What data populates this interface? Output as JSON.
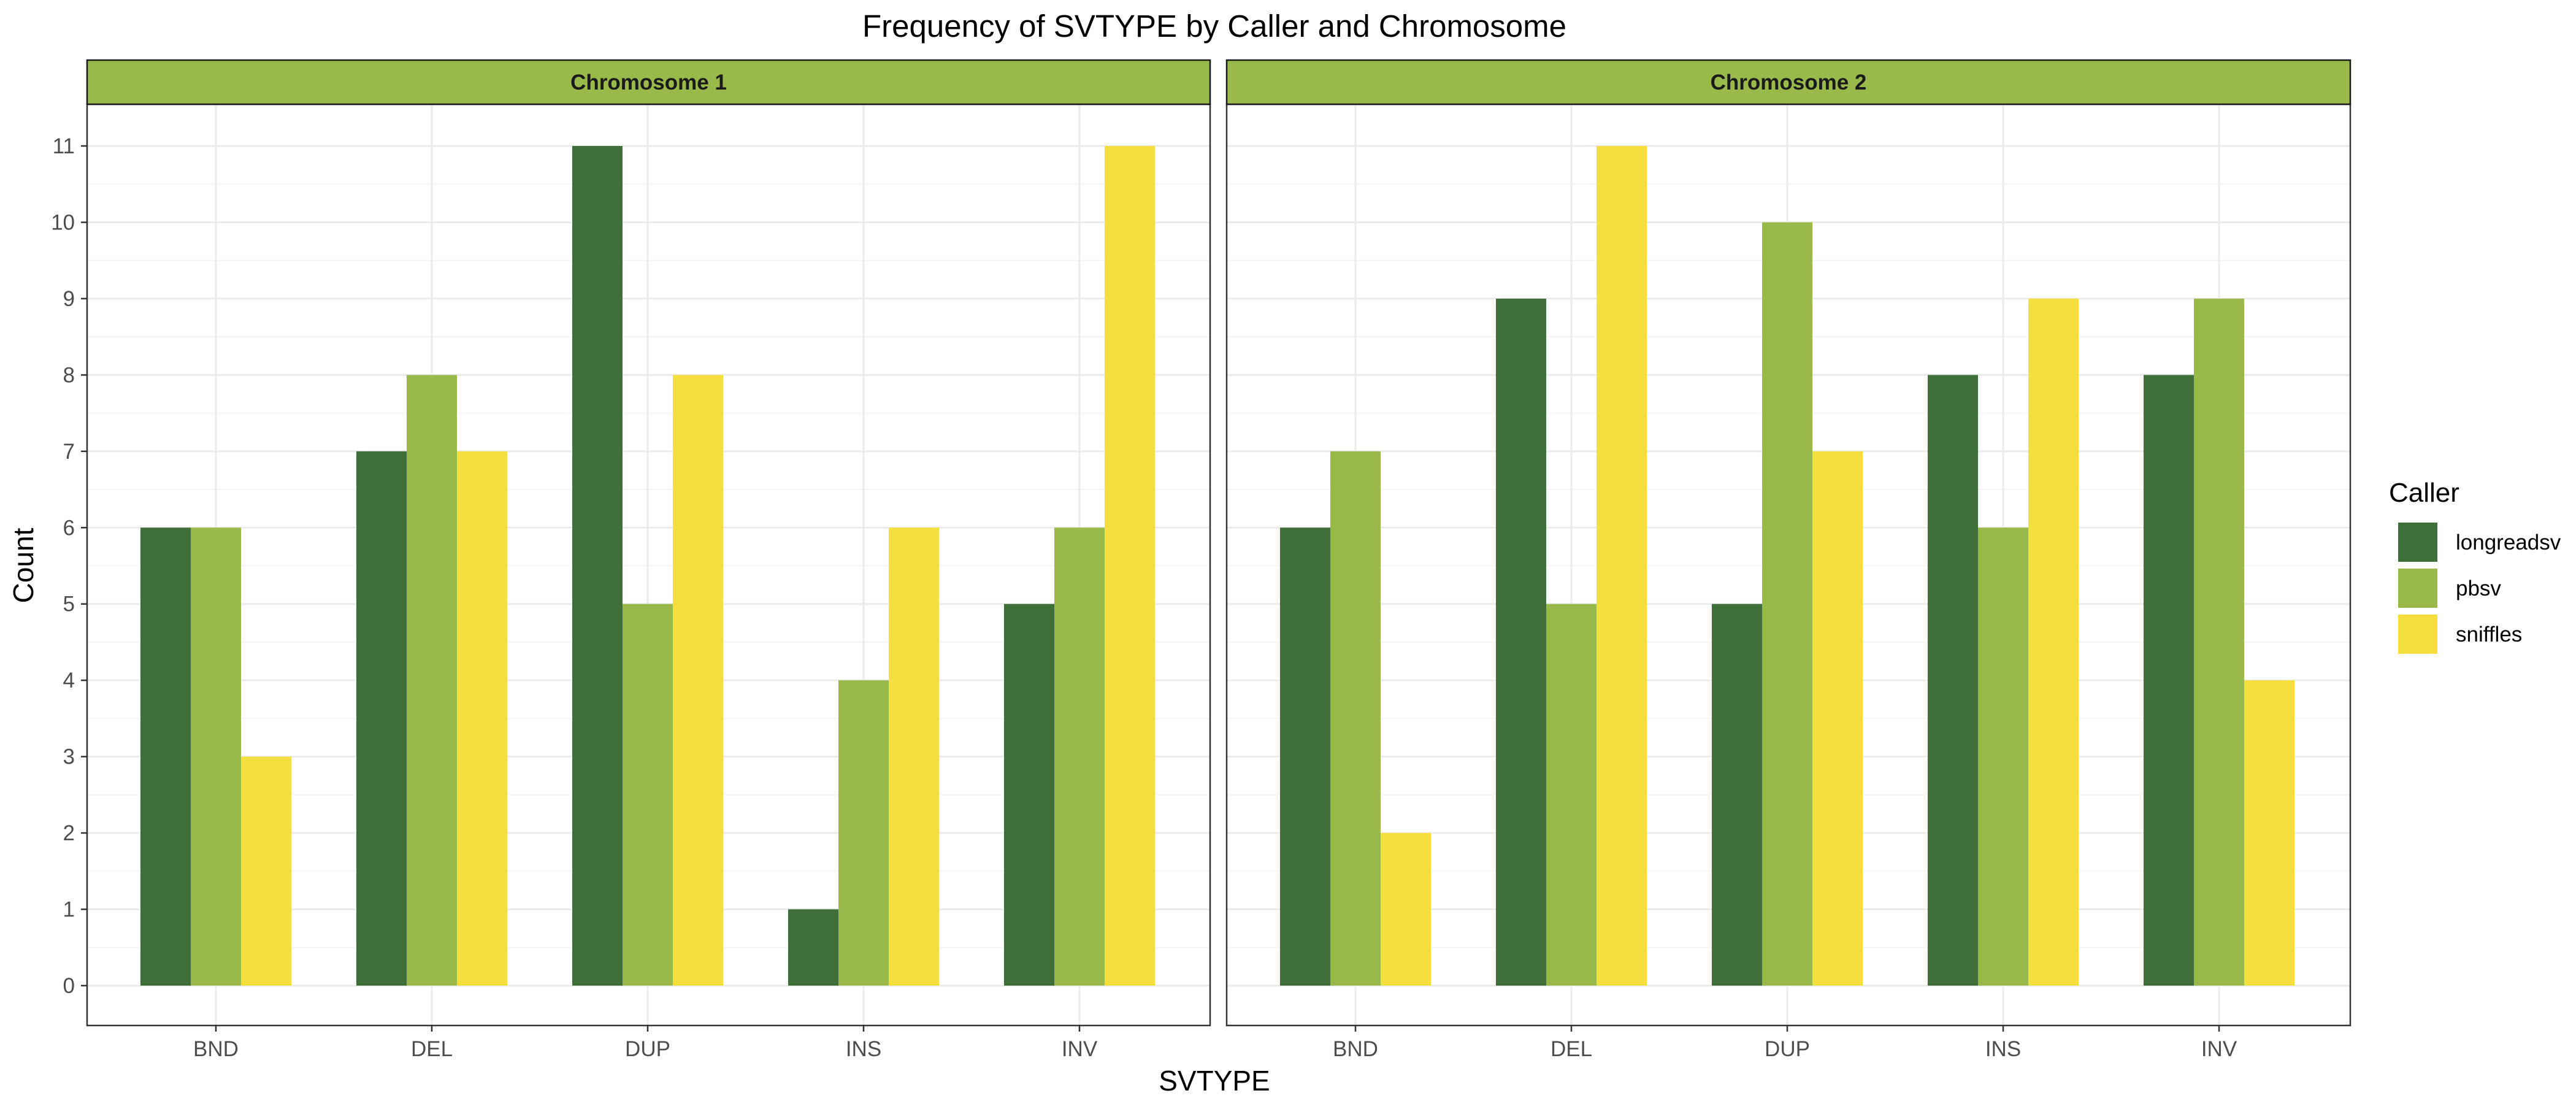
{
  "chart_data": {
    "type": "bar",
    "title": "Frequency of SVTYPE by Caller and Chromosome",
    "xlabel": "SVTYPE",
    "ylabel": "Count",
    "ylim": [
      0,
      11
    ],
    "yticks": [
      0,
      1,
      2,
      3,
      4,
      5,
      6,
      7,
      8,
      9,
      10,
      11
    ],
    "grid": true,
    "legend": {
      "title": "Caller",
      "placement": "right",
      "entries": [
        "longreadsv",
        "pbsv",
        "sniffles"
      ]
    },
    "colors": {
      "longreadsv": "#3e6f39",
      "pbsv": "#9ab94b",
      "sniffles": "#f4df3f",
      "strip": "#9ab94b"
    },
    "categories": [
      "BND",
      "DEL",
      "DUP",
      "INS",
      "INV"
    ],
    "facets": [
      {
        "label": "Chromosome 1",
        "series": [
          {
            "name": "longreadsv",
            "values": [
              6,
              7,
              11,
              1,
              5
            ]
          },
          {
            "name": "pbsv",
            "values": [
              6,
              8,
              5,
              4,
              6
            ]
          },
          {
            "name": "sniffles",
            "values": [
              3,
              7,
              8,
              6,
              11
            ]
          }
        ]
      },
      {
        "label": "Chromosome 2",
        "series": [
          {
            "name": "longreadsv",
            "values": [
              6,
              9,
              5,
              8,
              8
            ]
          },
          {
            "name": "pbsv",
            "values": [
              7,
              5,
              10,
              6,
              9
            ]
          },
          {
            "name": "sniffles",
            "values": [
              2,
              11,
              7,
              9,
              4
            ]
          }
        ]
      }
    ]
  }
}
